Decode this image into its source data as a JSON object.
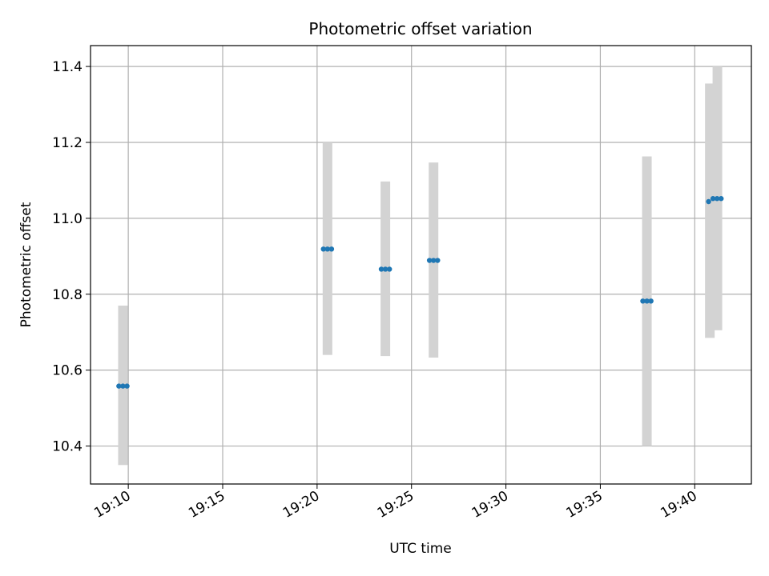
{
  "chart_data": {
    "type": "scatter",
    "title": "Photometric offset variation",
    "xlabel": "UTC time",
    "ylabel": "Photometric offset",
    "x_axis": {
      "kind": "time",
      "range": [
        "19:08",
        "19:43"
      ],
      "ticks": [
        "19:10",
        "19:15",
        "19:20",
        "19:25",
        "19:30",
        "19:35",
        "19:40"
      ]
    },
    "y_axis": {
      "range": [
        10.3,
        11.455
      ],
      "ticks": [
        10.4,
        10.6,
        10.8,
        11.0,
        11.2,
        11.4
      ],
      "tick_labels": [
        "10.4",
        "10.6",
        "10.8",
        "11.0",
        "11.2",
        "11.4"
      ]
    },
    "grid": true,
    "colors": {
      "points": "#1f77b4",
      "error_bars": "#d3d3d3"
    },
    "error_bars": [
      {
        "x": "19:09:43",
        "low": 10.35,
        "high": 10.77
      },
      {
        "x": "19:20:33",
        "low": 10.64,
        "high": 11.2
      },
      {
        "x": "19:23:37",
        "low": 10.637,
        "high": 11.097
      },
      {
        "x": "19:26:10",
        "low": 10.633,
        "high": 11.147
      },
      {
        "x": "19:37:28",
        "low": 10.4,
        "high": 11.163
      },
      {
        "x": "19:40:48",
        "low": 10.685,
        "high": 11.355
      },
      {
        "x": "19:41:12",
        "low": 10.705,
        "high": 11.4
      }
    ],
    "series": [
      {
        "points": [
          {
            "x": "19:09:30",
            "y": 10.558
          },
          {
            "x": "19:09:43",
            "y": 10.558
          },
          {
            "x": "19:09:56",
            "y": 10.558
          },
          {
            "x": "19:20:20",
            "y": 10.919
          },
          {
            "x": "19:20:33",
            "y": 10.919
          },
          {
            "x": "19:20:46",
            "y": 10.919
          },
          {
            "x": "19:23:24",
            "y": 10.866
          },
          {
            "x": "19:23:37",
            "y": 10.866
          },
          {
            "x": "19:23:50",
            "y": 10.866
          },
          {
            "x": "19:25:57",
            "y": 10.889
          },
          {
            "x": "19:26:10",
            "y": 10.889
          },
          {
            "x": "19:26:23",
            "y": 10.889
          },
          {
            "x": "19:37:15",
            "y": 10.782
          },
          {
            "x": "19:37:28",
            "y": 10.782
          },
          {
            "x": "19:37:41",
            "y": 10.782
          },
          {
            "x": "19:40:44",
            "y": 11.044
          },
          {
            "x": "19:40:58",
            "y": 11.052
          },
          {
            "x": "19:41:11",
            "y": 11.052
          },
          {
            "x": "19:41:24",
            "y": 11.052
          }
        ]
      }
    ]
  }
}
